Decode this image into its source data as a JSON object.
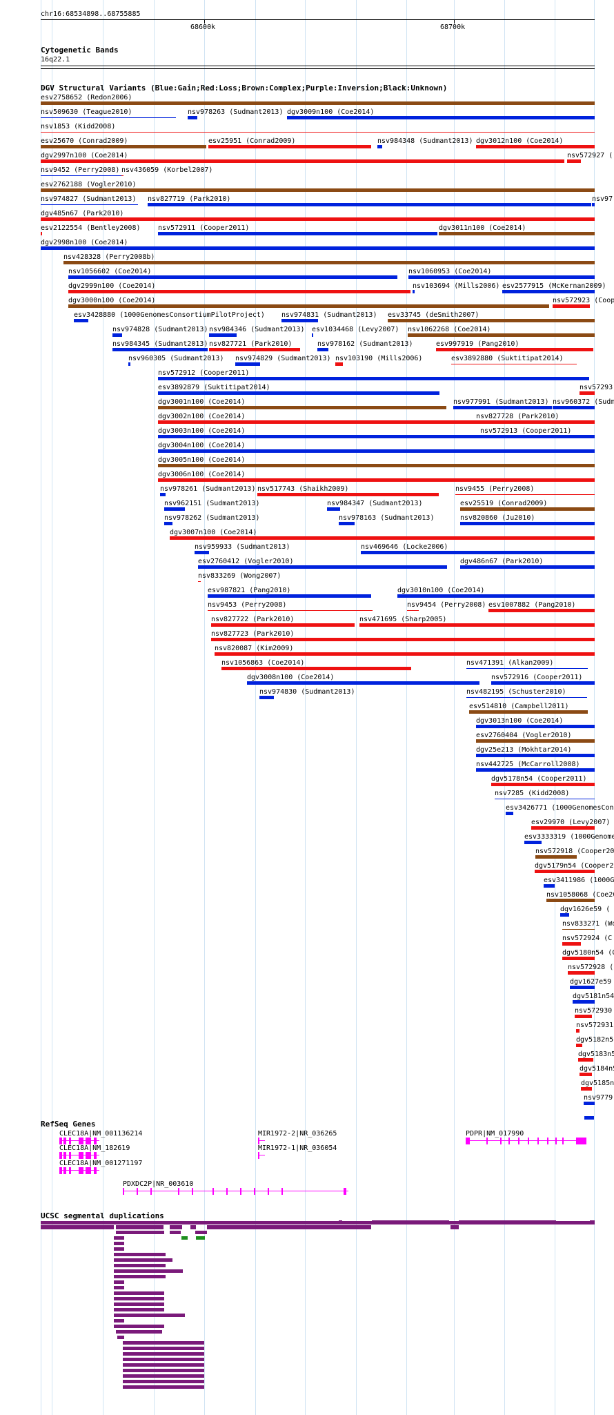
{
  "browser": {
    "region": "chr16:68534898..68755885",
    "ruler_labels": [
      "68600k",
      "68700k"
    ]
  },
  "colors": {
    "gain": "#0022dd",
    "loss": "#ee1111",
    "complex": "#8b4a14",
    "segdup_purple": "#7a1a7a",
    "segdup_green": "#1e8f1e",
    "refseq_magenta": "#ff00ff",
    "grid": "#cfe3f3"
  },
  "tracks": {
    "cytoband": {
      "title": "Cytogenetic Bands",
      "band": "16q22.1"
    },
    "dgv": {
      "title": "DGV Structural Variants (Blue:Gain;Red:Loss;Brown:Complex;Purple:Inversion;Black:Unknown)"
    },
    "refseq": {
      "title": "RefSeq Genes"
    },
    "segdup": {
      "title": "UCSC segmental duplications"
    }
  },
  "dgv_labels": [
    "esv2758652 (Redon2006)",
    "nsv509630 (Teague2010)",
    "nsv978263 (Sudmant2013)",
    "dgv3009n100 (Coe2014)",
    "nsv1853 (Kidd2008)",
    "esv25670 (Conrad2009)",
    "esv25951 (Conrad2009)",
    "nsv984348 (Sudmant2013)",
    "dgv3012n100 (Coe2014)",
    "dgv2997n100 (Coe2014)",
    "nsv572927 (",
    "nsv9452 (Perry2008)",
    "nsv436059 (Korbel2007)",
    "esv2762188 (Vogler2010)",
    "nsv974827 (Sudmant2013)",
    "nsv827719 (Park2010)",
    "nsv97",
    "dgv485n67 (Park2010)",
    "esv2122554 (Bentley2008)",
    "nsv572911 (Cooper2011)",
    "dgv3011n100 (Coe2014)",
    "dgv2998n100 (Coe2014)",
    "nsv428328 (Perry2008b)",
    "nsv1056602 (Coe2014)",
    "nsv1060953 (Coe2014)",
    "dgv2999n100 (Coe2014)",
    "nsv103694 (Mills2006)",
    "esv2577915 (McKernan2009)",
    "dgv3000n100 (Coe2014)",
    "nsv572923 (Coop",
    "esv3428880 (1000GenomesConsortiumPilotProject)",
    "nsv974831 (Sudmant2013)",
    "esv33745 (deSmith2007)",
    "nsv974828 (Sudmant2013)",
    "nsv984346 (Sudmant2013)",
    "esv1034468 (Levy2007)",
    "nsv1062268 (Coe2014)",
    "nsv984345 (Sudmant2013)",
    "nsv827721 (Park2010)",
    "nsv978162 (Sudmant2013)",
    "esv997919 (Pang2010)",
    "nsv960305 (Sudmant2013)",
    "nsv974829 (Sudmant2013)",
    "nsv103190 (Mills2006)",
    "esv3892880 (Suktitipat2014)",
    "nsv572912 (Cooper2011)",
    "esv3892879 (Suktitipat2014)",
    "nsv57293",
    "dgv3001n100 (Coe2014)",
    "nsv977991 (Sudmant2013)",
    "nsv960372 (Sudm",
    "dgv3002n100 (Coe2014)",
    "nsv827728 (Park2010)",
    "dgv3003n100 (Coe2014)",
    "nsv572913 (Cooper2011)",
    "dgv3004n100 (Coe2014)",
    "dgv3005n100 (Coe2014)",
    "dgv3006n100 (Coe2014)",
    "nsv978261 (Sudmant2013)",
    "nsv517743 (Shaikh2009)",
    "nsv9455 (Perry2008)",
    "nsv962151 (Sudmant2013)",
    "nsv984347 (Sudmant2013)",
    "esv25519 (Conrad2009)",
    "nsv978262 (Sudmant2013)",
    "nsv978163 (Sudmant2013)",
    "nsv820860 (Ju2010)",
    "dgv3007n100 (Coe2014)",
    "nsv959933 (Sudmant2013)",
    "nsv469646 (Locke2006)",
    "esv2760412 (Vogler2010)",
    "dgv486n67 (Park2010)",
    "nsv833269 (Wong2007)",
    "esv987821 (Pang2010)",
    "dgv3010n100 (Coe2014)",
    "nsv9453 (Perry2008)",
    "nsv9454 (Perry2008)",
    "esv1007882 (Pang2010)",
    "nsv827722 (Park2010)",
    "nsv471695 (Sharp2005)",
    "nsv827723 (Park2010)",
    "nsv820087 (Kim2009)",
    "nsv1056863 (Coe2014)",
    "nsv471391 (Alkan2009)",
    "dgv3008n100 (Coe2014)",
    "nsv572916 (Cooper2011)",
    "nsv974830 (Sudmant2013)",
    "nsv482195 (Schuster2010)",
    "esv514810 (Campbell2011)",
    "dgv3013n100 (Coe2014)",
    "esv2760404 (Vogler2010)",
    "dgv25e213 (Mokhtar2014)",
    "nsv442725 (McCarroll2008)",
    "dgv5178n54 (Cooper2011)",
    "nsv7285 (Kidd2008)",
    "esv3426771 (1000GenomesCons",
    "esv29970 (Levy2007)",
    "esv3333319 (1000Genome",
    "nsv572918 (Cooper20",
    "dgv5179n54 (Cooper20",
    "esv3411986 (1000Ge",
    "nsv1058068 (Coe20",
    "dgv1626e59 (",
    "nsv833271 (Wo",
    "nsv572924 (C",
    "dgv5180n54 (C",
    "nsv572928 (",
    "dgv1627e59",
    "dgv5181n54",
    "nsv572930",
    "nsv572931",
    "dgv5182n5",
    "dgv5183n5",
    "dgv5184n5",
    "dgv5185n",
    "nsv9779"
  ],
  "refseq_labels": [
    "CLEC18A|NM_001136214",
    "MIR1972-2|NR_036265",
    "PDPR|NM_017990",
    "CLEC18A|NM_182619",
    "MIR1972-1|NR_036054",
    "CLEC18A|NM_001271197",
    "PDXDC2P|NR_003610"
  ]
}
